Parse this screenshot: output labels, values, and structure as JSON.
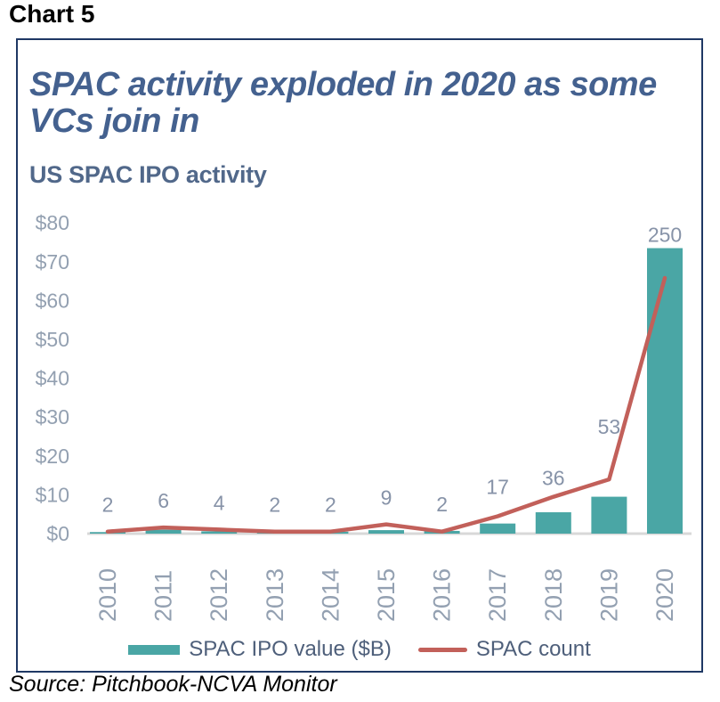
{
  "header": {
    "label": "Chart 5"
  },
  "chart_data": {
    "type": "combo_bar_line",
    "title": "SPAC activity exploded in 2020 as some VCs join in",
    "subtitle": "US SPAC IPO activity",
    "categories": [
      "2010",
      "2011",
      "2012",
      "2013",
      "2014",
      "2015",
      "2016",
      "2017",
      "2018",
      "2019",
      "2020"
    ],
    "series": [
      {
        "name": "SPAC IPO value ($B)",
        "type": "bar",
        "color": "#4AA6A5",
        "axis": "left",
        "values": [
          0.4,
          1.0,
          0.6,
          0.4,
          0.5,
          0.9,
          0.7,
          2.6,
          5.5,
          9.5,
          73.5
        ]
      },
      {
        "name": "SPAC count",
        "type": "line",
        "color": "#C2605A",
        "axis": "hidden",
        "values": [
          2,
          6,
          4,
          2,
          2,
          9,
          2,
          17,
          36,
          53,
          250
        ],
        "data_labels_shown": true
      }
    ],
    "data_labels": [
      "2",
      "6",
      "4",
      "2",
      "2",
      "9",
      "2",
      "17",
      "36",
      "53",
      "250"
    ],
    "y_axis": {
      "tick_labels": [
        "$0",
        "$10",
        "$20",
        "$30",
        "$40",
        "$50",
        "$60",
        "$70",
        "$80"
      ],
      "min": 0,
      "max": 80,
      "tick_step": 10
    },
    "x_axis": {
      "label_rotation_deg": -90
    },
    "grid": "baseline-only",
    "legend": {
      "position": "bottom",
      "entries": [
        {
          "label": "SPAC IPO value ($B)",
          "marker": "bar",
          "color": "#4AA6A5"
        },
        {
          "label": "SPAC count",
          "marker": "line",
          "color": "#C2605A"
        }
      ]
    }
  },
  "footer": {
    "source": "Source: Pitchbook-NCVA Monitor"
  },
  "colors": {
    "panel_border": "#1F3864",
    "title_text": "#44618F",
    "subtitle_text": "#51688A",
    "axis_text": "#93A0B1",
    "data_label_text": "#8793A8",
    "legend_text": "#4E5F7A",
    "baseline": "#D8D8D8",
    "bar": "#4AA6A5",
    "line": "#C2605A"
  }
}
